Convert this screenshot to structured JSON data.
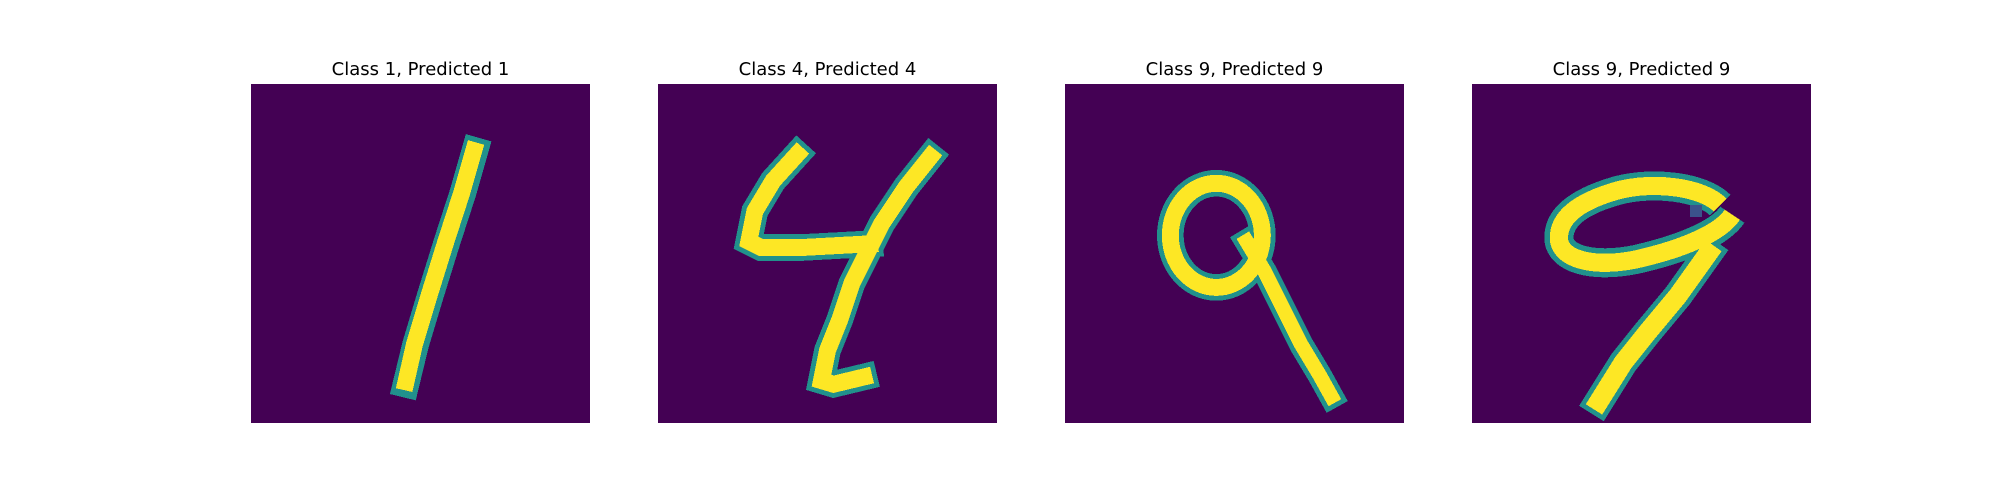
{
  "colors": {
    "background": "#ffffff",
    "image_low": "#440154",
    "image_mid": "#21918c",
    "image_high": "#fde725"
  },
  "figure": {
    "panels": [
      {
        "title": "Class 1, Predicted 1",
        "class_label": 1,
        "predicted_label": 1,
        "digit": "1"
      },
      {
        "title": "Class 4, Predicted 4",
        "class_label": 4,
        "predicted_label": 4,
        "digit": "4"
      },
      {
        "title": "Class 9, Predicted 9",
        "class_label": 9,
        "predicted_label": 9,
        "digit": "9-small-loop"
      },
      {
        "title": "Class 9, Predicted 9",
        "class_label": 9,
        "predicted_label": 9,
        "digit": "9-wide-loop"
      }
    ]
  }
}
